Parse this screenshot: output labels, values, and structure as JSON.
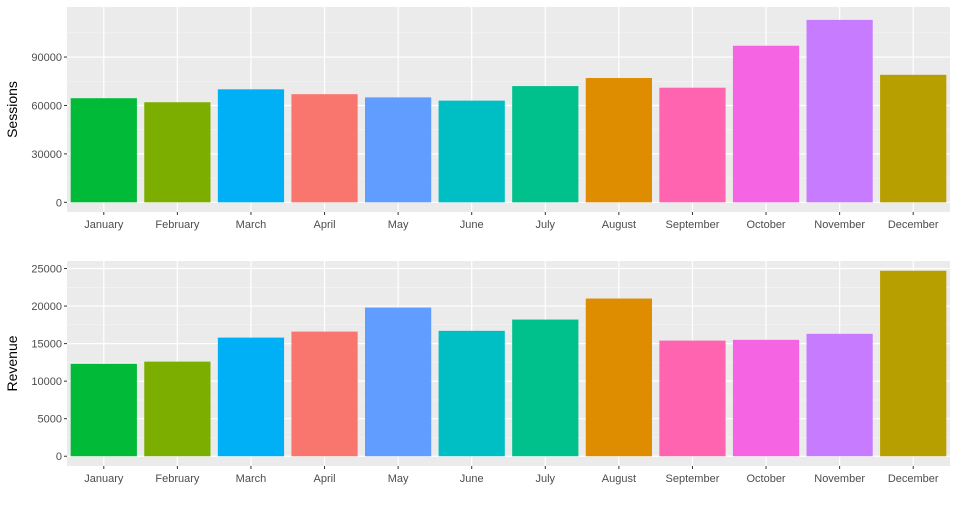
{
  "chart_data": [
    {
      "type": "bar",
      "categories": [
        "January",
        "February",
        "March",
        "April",
        "May",
        "June",
        "July",
        "August",
        "September",
        "October",
        "November",
        "December"
      ],
      "values": [
        64500,
        62000,
        70000,
        67000,
        65000,
        63000,
        72000,
        77000,
        71000,
        97000,
        113000,
        79000
      ],
      "xlabel": "",
      "ylabel": "Sessions",
      "ylim": [
        -6000,
        121000
      ],
      "yticks": [
        0,
        30000,
        60000,
        90000
      ],
      "ytick_labels": [
        "0",
        "30000",
        "60000",
        "90000"
      ],
      "grid": true,
      "legend": "none"
    },
    {
      "type": "bar",
      "categories": [
        "January",
        "February",
        "March",
        "April",
        "May",
        "June",
        "July",
        "August",
        "September",
        "October",
        "November",
        "December"
      ],
      "values": [
        12300,
        12600,
        15800,
        16600,
        19800,
        16700,
        18200,
        21000,
        15400,
        15500,
        16300,
        24700
      ],
      "xlabel": "",
      "ylabel": "Revenue",
      "ylim": [
        -1300,
        26000
      ],
      "yticks": [
        0,
        5000,
        10000,
        15000,
        20000,
        25000
      ],
      "ytick_labels": [
        "0",
        "5000",
        "10000",
        "15000",
        "20000",
        "25000"
      ],
      "grid": true,
      "legend": "none"
    }
  ],
  "colors": {
    "panel_background": "#ebebeb",
    "grid_major": "#ffffff",
    "grid_minor": "#f5f5f5",
    "tick_text": "#4d4d4d",
    "bars": [
      "#00BA38",
      "#7CAE00",
      "#00B0F6",
      "#F8766D",
      "#619CFF",
      "#00BFC4",
      "#00C08B",
      "#DE8C00",
      "#FF64B0",
      "#F564E3",
      "#C77CFF",
      "#B79F00"
    ]
  }
}
